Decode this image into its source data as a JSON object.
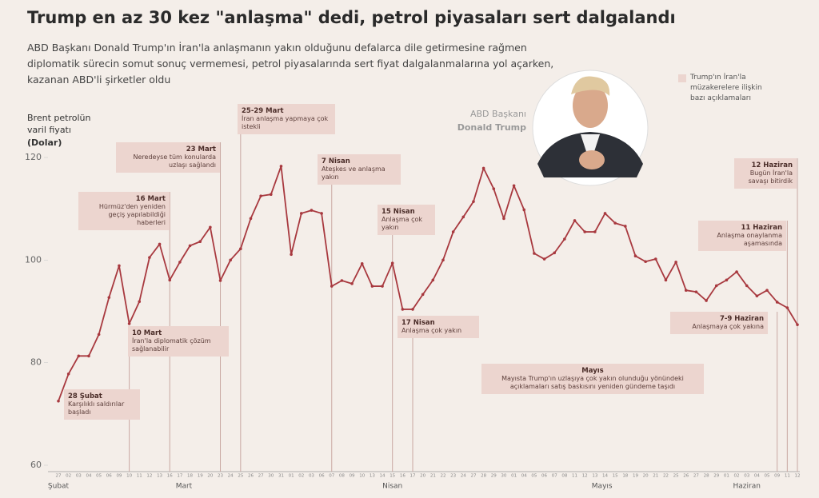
{
  "title": "Trump en az 30 kez \"anlaşma\" dedi, petrol piyasaları sert dalgalandı",
  "subtitle": "ABD Başkanı Donald Trump'ın İran'la anlaşmanın yakın olduğunu defalarca dile getirmesine rağmen diplomatik sürecin somut sonuç vermemesi, petrol piyasalarında sert fiyat dalgalanmalarına yol açarken, kazanan ABD'li şirketler oldu",
  "portrait": {
    "role": "ABD Başkanı",
    "name": "Donald Trump"
  },
  "legend": "Trump'ın İran'la müzakerelere ilişkin bazı açıklamaları",
  "chart_data": {
    "type": "line",
    "y_label": "Brent petrolün varil fiyatı",
    "y_unit": "(Dolar)",
    "color": "#a8393f",
    "categories": [
      "27",
      "02",
      "03",
      "04",
      "05",
      "06",
      "09",
      "10",
      "11",
      "12",
      "13",
      "16",
      "17",
      "18",
      "19",
      "20",
      "23",
      "24",
      "25",
      "26",
      "27",
      "30",
      "31",
      "01",
      "02",
      "03",
      "06",
      "07",
      "08",
      "09",
      "10",
      "13",
      "14",
      "15",
      "16",
      "17",
      "20",
      "21",
      "22",
      "23",
      "24",
      "27",
      "28",
      "29",
      "30",
      "01",
      "04",
      "05",
      "06",
      "07",
      "08",
      "11",
      "12",
      "13",
      "14",
      "15",
      "18",
      "19",
      "20",
      "21",
      "22",
      "25",
      "26",
      "27",
      "28",
      "29",
      "01",
      "02",
      "03",
      "04",
      "05",
      "09",
      "11",
      "12"
    ],
    "values": [
      72.5,
      77.8,
      81.3,
      81.3,
      85.5,
      92.7,
      98.9,
      87.6,
      91.9,
      100.5,
      103.1,
      96.1,
      99.6,
      102.8,
      103.6,
      106.4,
      96.0,
      100,
      102.2,
      108.1,
      112.5,
      112.8,
      118.3,
      101.1,
      109.1,
      109.7,
      109.1,
      94.9,
      96.0,
      95.4,
      99.3,
      94.9,
      94.9,
      99.4,
      90.4,
      90.4,
      93.3,
      96.1,
      100,
      105.5,
      108.4,
      111.4,
      117.9,
      113.9,
      108.1,
      114.5,
      109.8,
      101.3,
      100.2,
      101.4,
      104.1,
      107.7,
      105.5,
      105.5,
      109.1,
      107.2,
      106.6,
      100.8,
      99.7,
      100.2,
      96.1,
      99.6,
      94.1,
      93.8,
      92.1,
      95.0,
      96.1,
      97.7,
      95.0,
      93.0,
      94.1,
      91.8,
      90.7,
      87.4
    ],
    "months": [
      "Şubat",
      "Mart",
      "Nisan",
      "Mayıs",
      "Haziran"
    ],
    "ylim": [
      60,
      120
    ],
    "yticks": [
      60,
      80,
      100,
      120
    ],
    "grid": false,
    "annotations": [
      {
        "date": "28 Şubat",
        "text": "Karşılıklı saldırılar başladı"
      },
      {
        "date": "10 Mart",
        "text": "İran'la diplomatik çözüm sağlanabilir"
      },
      {
        "date": "16 Mart",
        "text": "Hürmüz'den yeniden geçiş yapılabildiği haberleri"
      },
      {
        "date": "23 Mart",
        "text": "Neredeyse tüm konularda uzlaşı sağlandı"
      },
      {
        "date": "25-29 Mart",
        "text": "İran anlaşma yapmaya çok istekli"
      },
      {
        "date": "7 Nisan",
        "text": "Ateşkes ve anlaşma yakın"
      },
      {
        "date": "15 Nisan",
        "text": "Anlaşma çok yakın"
      },
      {
        "date": "17 Nisan",
        "text": "Anlaşma çok yakın"
      },
      {
        "date": "Mayıs",
        "text": "Mayısta Trump'ın uzlaşıya çok yakın olunduğu yönündeki açıklamaları satış baskısını yeniden gündeme taşıdı"
      },
      {
        "date": "7-9 Haziran",
        "text": "Anlaşmaya çok yakına"
      },
      {
        "date": "11 Haziran",
        "text": "Anlaşma onaylanma aşamasında"
      },
      {
        "date": "12 Haziran",
        "text": "Bugün İran'la savaşı bitirdik"
      }
    ]
  }
}
